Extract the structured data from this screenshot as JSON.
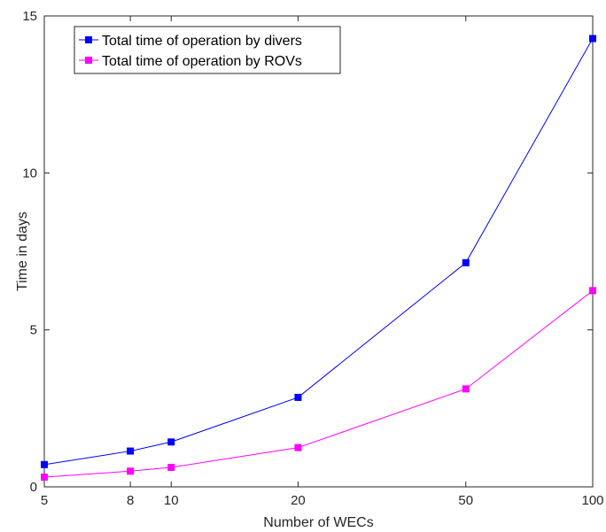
{
  "chart_data": {
    "type": "line",
    "x_scale": "log",
    "x": [
      5,
      8,
      10,
      20,
      50,
      100
    ],
    "xlim": [
      5,
      100
    ],
    "ylim": [
      0,
      15
    ],
    "xticks": [
      5,
      8,
      10,
      20,
      50,
      100
    ],
    "yticks": [
      0,
      5,
      10,
      15
    ],
    "xlabel": "Number of WECs",
    "ylabel": "Time in days",
    "grid": false,
    "legend_position": "top-left",
    "series": [
      {
        "name": "Total time of operation by divers",
        "color": "#0000ff",
        "marker": "square",
        "values": [
          0.71,
          1.14,
          1.43,
          2.85,
          7.14,
          14.28
        ]
      },
      {
        "name": "Total time of operation by ROVs",
        "color": "#ff00ff",
        "marker": "square",
        "values": [
          0.31,
          0.5,
          0.62,
          1.25,
          3.12,
          6.25
        ]
      }
    ]
  }
}
